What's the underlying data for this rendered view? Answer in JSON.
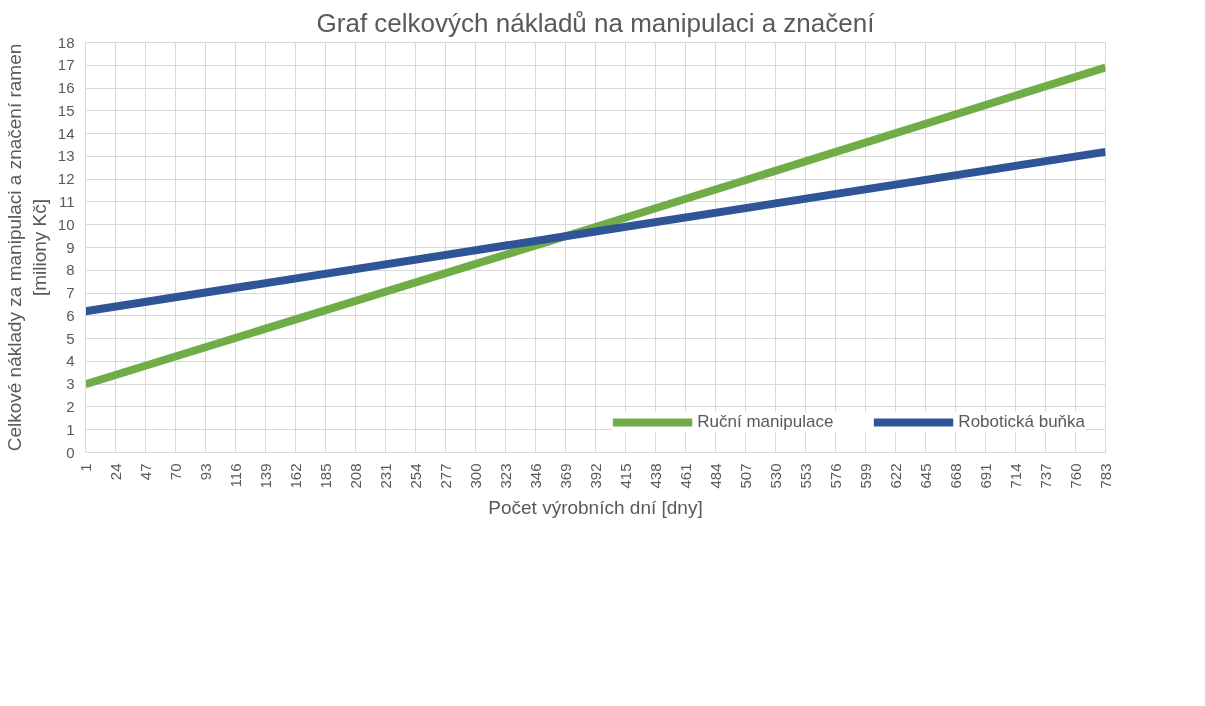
{
  "chart_data": {
    "type": "line",
    "title": "Graf celkových nákladů na manipulaci a značení",
    "xlabel": "Počet výrobních dní [dny]",
    "ylabel": "Celkové náklady za manipulaci a značení ramen\n[miliony Kč]",
    "x": [
      1,
      392,
      783
    ],
    "series": [
      {
        "name": "Ruční manipulace",
        "color": "#70ad47",
        "values": [
          3.0,
          9.9,
          16.9
        ]
      },
      {
        "name": "Robotická buňka",
        "color": "#2f5597",
        "values": [
          6.2,
          9.7,
          13.2
        ]
      }
    ],
    "xlim": [
      1,
      783
    ],
    "xticks": [
      1,
      24,
      47,
      70,
      93,
      116,
      139,
      162,
      185,
      208,
      231,
      254,
      277,
      300,
      323,
      346,
      369,
      392,
      415,
      438,
      461,
      484,
      507,
      530,
      553,
      576,
      599,
      622,
      645,
      668,
      691,
      714,
      737,
      760,
      783
    ],
    "ylim": [
      0,
      18
    ],
    "yticks": [
      0,
      1,
      2,
      3,
      4,
      5,
      6,
      7,
      8,
      9,
      10,
      11,
      12,
      13,
      14,
      15,
      16,
      17,
      18
    ],
    "grid": true,
    "legend": "bottom right",
    "marker": "none",
    "line_style": "solid"
  }
}
